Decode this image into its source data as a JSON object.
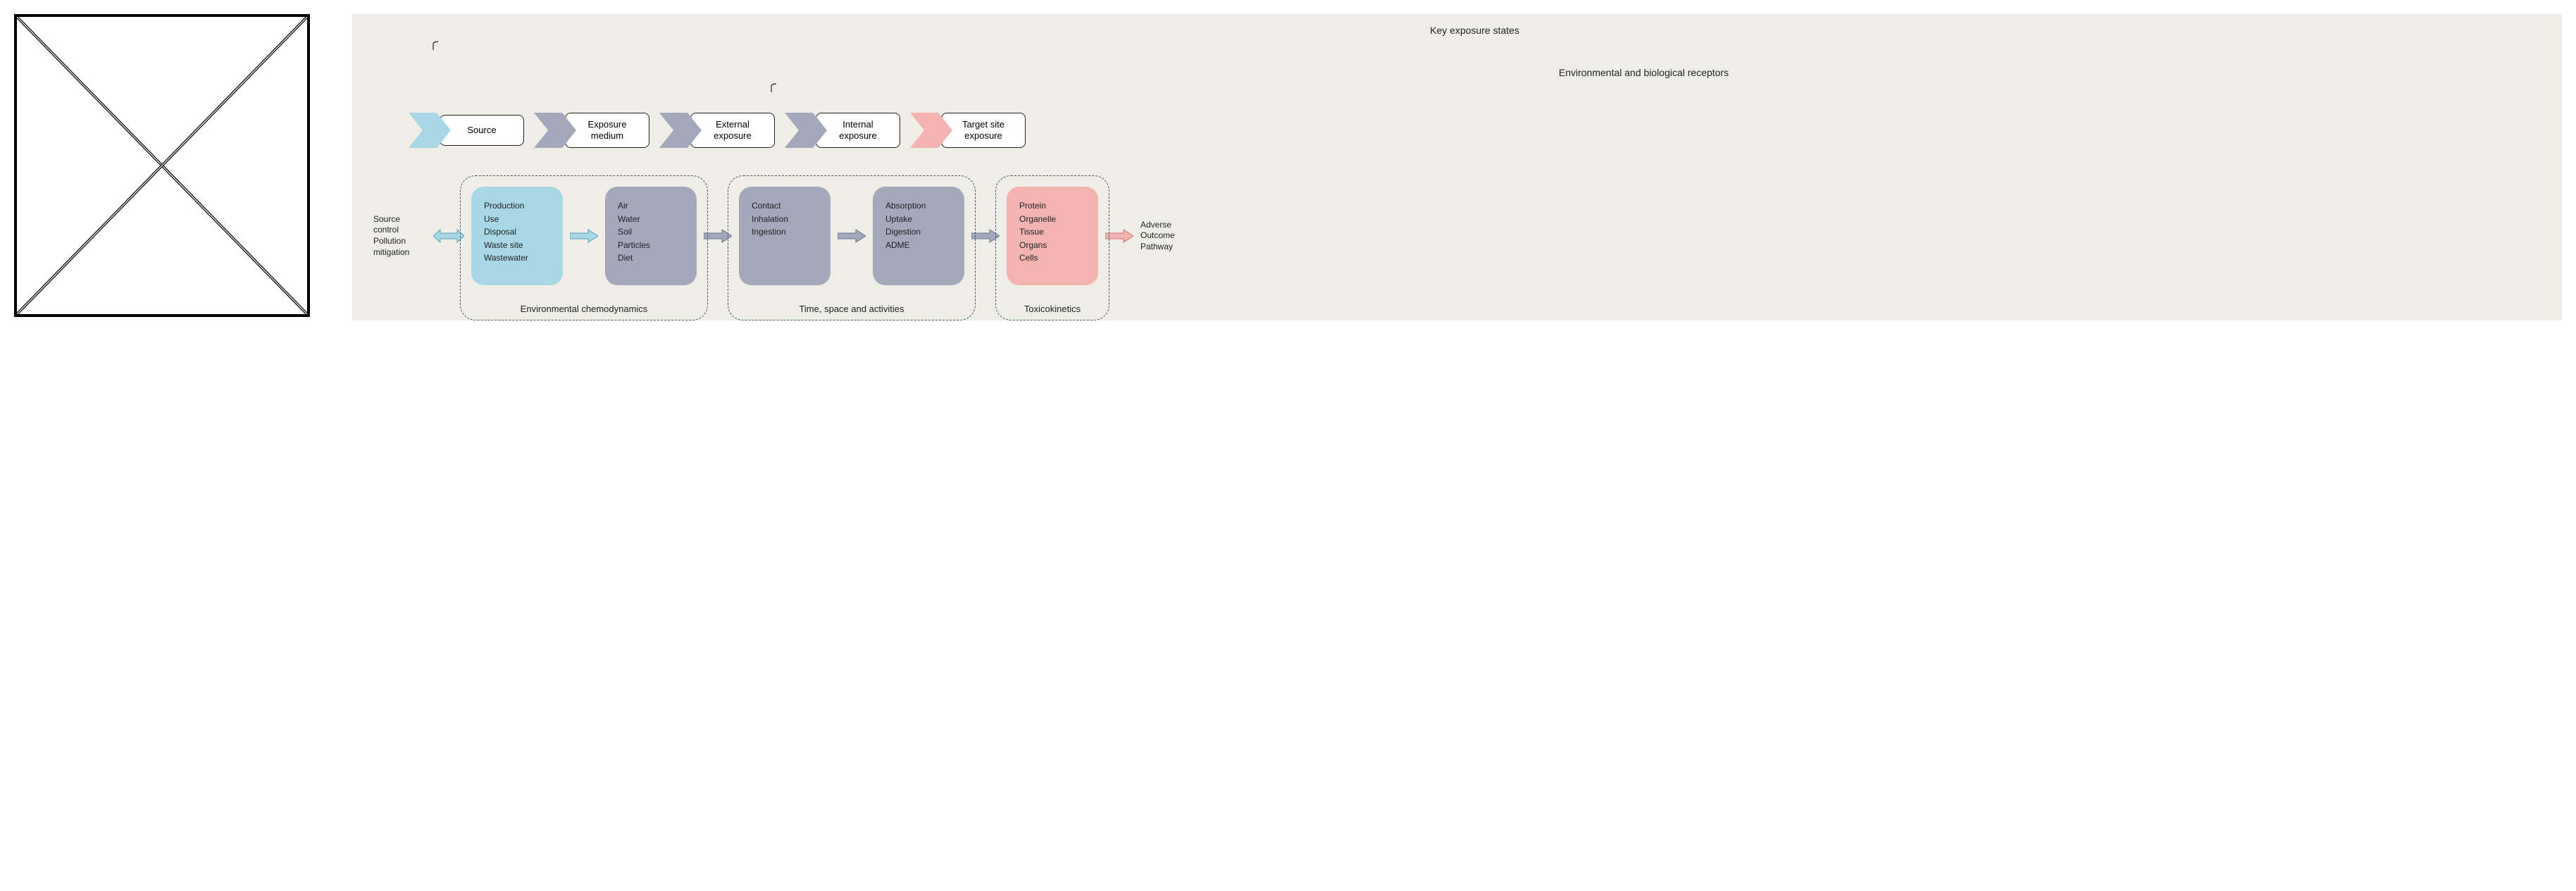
{
  "colors": {
    "panel_bg": "#eeeee6",
    "blue": "#a8d7e6",
    "blue_arrow_fill": "#a8d7e6",
    "blue_arrow_stroke": "#5aa0b8",
    "slate": "#a3a8bb",
    "slate_arrow_fill": "#a3a8bb",
    "slate_arrow_stroke": "#6e7690",
    "pink": "#f3b4b1",
    "pink_arrow_fill": "#f3b4b1",
    "pink_arrow_stroke": "#d0726d",
    "dash_border": "#3a5a78",
    "text": "#222222",
    "stage_border": "#222222",
    "stage_bg": "#ffffff"
  },
  "brackets": {
    "top": {
      "label": "Key exposure states"
    },
    "sub": {
      "label": "Environmental and biological receptors"
    }
  },
  "stages": [
    {
      "label": "Source",
      "chevron_color": "blue"
    },
    {
      "label": "Exposure\nmedium",
      "chevron_color": "slate"
    },
    {
      "label": "External\nexposure",
      "chevron_color": "slate"
    },
    {
      "label": "Internal\nexposure",
      "chevron_color": "slate"
    },
    {
      "label": "Target site\nexposure",
      "chevron_color": "pink"
    }
  ],
  "lower": {
    "left_label": "Source\ncontrol\nPollution\nmitigation",
    "cards": [
      {
        "color": "blue",
        "text": "Production\nUse\nDisposal\nWaste site\nWastewater"
      },
      {
        "color": "slate",
        "text": "Air\nWater\nSoil\nParticles\nDiet"
      },
      {
        "color": "slate",
        "text": "Contact\nInhalation\nIngestion"
      },
      {
        "color": "slate",
        "text": "Absorption\nUptake\nDigestion\nADME"
      },
      {
        "color": "pink",
        "text": "Protein\nOrganelle\nTissue\nOrgans\nCells"
      }
    ],
    "arrows": [
      {
        "type": "bi",
        "color": "blue"
      },
      {
        "type": "uni",
        "color": "blue"
      },
      {
        "type": "uni",
        "color": "slate"
      },
      {
        "type": "uni",
        "color": "slate"
      },
      {
        "type": "uni",
        "color": "slate"
      },
      {
        "type": "uni",
        "color": "pink"
      }
    ],
    "right_label": "Adverse\nOutcome\nPathway",
    "groups": [
      {
        "label": "Environmental chemodynamics",
        "span": [
          0,
          1
        ]
      },
      {
        "label": "Time, space and activities",
        "span": [
          2,
          3
        ]
      },
      {
        "label": "Toxicokinetics",
        "span": [
          4,
          4
        ]
      }
    ]
  },
  "layout": {
    "stage_box_min_w": 120,
    "card_min_w": 130,
    "card_min_h": 140,
    "font_stage": 13,
    "font_card": 12,
    "font_bracket": 14
  }
}
